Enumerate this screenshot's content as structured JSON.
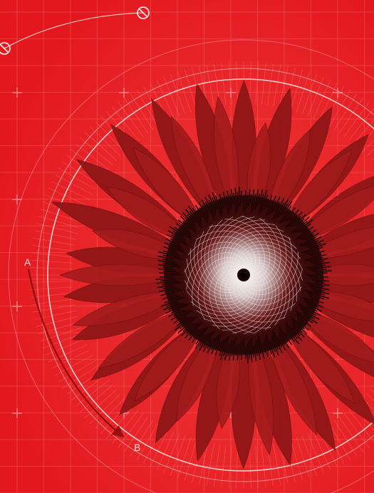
{
  "colors": {
    "background": "#e8242a",
    "grid_line": "#f36a6a",
    "petal_dark": "#8a1414",
    "petal_mid": "#a3191a",
    "disk_dark": "#3a0a0a",
    "spiral_line": "#f2eaea",
    "guide_line": "#fbdede",
    "arrow": "#9a1010"
  },
  "icons": [
    "slashed-circle-icon",
    "slashed-circle-icon"
  ],
  "labels": {
    "point_a": "A",
    "point_b": "B"
  }
}
